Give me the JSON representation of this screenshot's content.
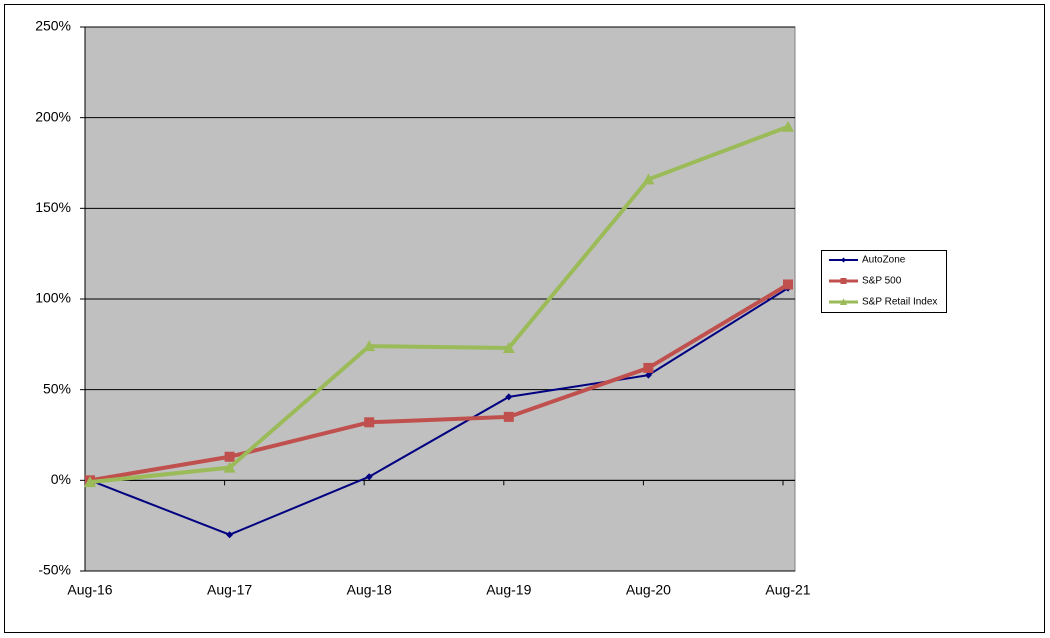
{
  "chart_data": {
    "type": "line",
    "categories": [
      "Aug-16",
      "Aug-17",
      "Aug-18",
      "Aug-19",
      "Aug-20",
      "Aug-21"
    ],
    "series": [
      {
        "name": "AutoZone",
        "color": "#000080",
        "marker": "diamond",
        "values": [
          0,
          -30,
          2,
          46,
          58,
          106
        ]
      },
      {
        "name": "S&P 500",
        "color": "#c0504d",
        "marker": "square",
        "values": [
          0,
          13,
          32,
          35,
          62,
          108
        ]
      },
      {
        "name": "S&P Retail Index",
        "color": "#9bbb59",
        "marker": "triangle",
        "values": [
          -1,
          7,
          74,
          73,
          166,
          195
        ]
      }
    ],
    "ylim": [
      -50,
      250
    ],
    "yticks": [
      {
        "value": -50,
        "label": "-50%"
      },
      {
        "value": 0,
        "label": "0%"
      },
      {
        "value": 50,
        "label": "50%"
      },
      {
        "value": 100,
        "label": "100%"
      },
      {
        "value": 150,
        "label": "150%"
      },
      {
        "value": 200,
        "label": "200%"
      },
      {
        "value": 250,
        "label": "250%"
      }
    ],
    "grid": true,
    "legend": "right",
    "plot_background": "#c0c0c0"
  }
}
